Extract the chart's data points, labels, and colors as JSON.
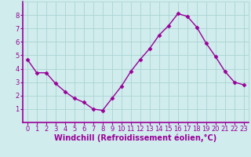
{
  "x": [
    0,
    1,
    2,
    3,
    4,
    5,
    6,
    7,
    8,
    9,
    10,
    11,
    12,
    13,
    14,
    15,
    16,
    17,
    18,
    19,
    20,
    21,
    22,
    23
  ],
  "y": [
    4.7,
    3.7,
    3.7,
    2.9,
    2.3,
    1.8,
    1.5,
    1.0,
    0.9,
    1.8,
    2.7,
    3.8,
    4.7,
    5.5,
    6.5,
    7.2,
    8.1,
    7.9,
    7.1,
    5.9,
    4.9,
    3.8,
    3.0,
    2.8
  ],
  "line_color": "#990099",
  "marker": "D",
  "markersize": 2.5,
  "linewidth": 1.0,
  "bg_color": "#d0ecec",
  "grid_color": "#aad4d4",
  "xlabel": "Windchill (Refroidissement éolien,°C)",
  "xlabel_fontsize": 7.0,
  "tick_fontsize": 6.0,
  "tick_color": "#990099",
  "ylim": [
    0,
    9
  ],
  "xlim": [
    -0.5,
    23.5
  ],
  "yticks": [
    1,
    2,
    3,
    4,
    5,
    6,
    7,
    8
  ],
  "xticks": [
    0,
    1,
    2,
    3,
    4,
    5,
    6,
    7,
    8,
    9,
    10,
    11,
    12,
    13,
    14,
    15,
    16,
    17,
    18,
    19,
    20,
    21,
    22,
    23
  ]
}
